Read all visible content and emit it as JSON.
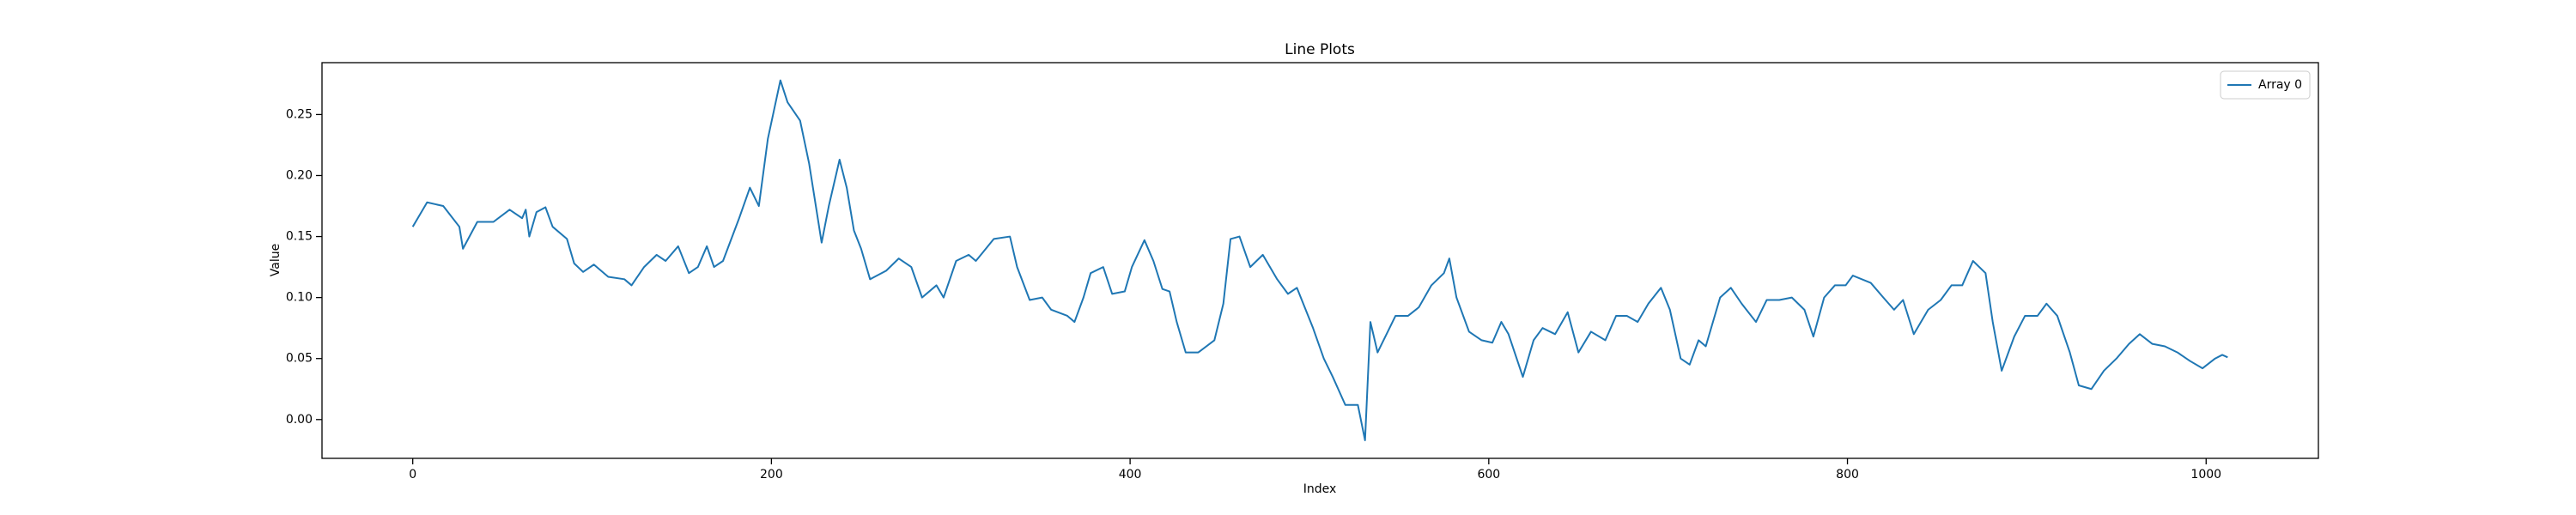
{
  "chart_data": {
    "type": "line",
    "title": "Line Plots",
    "x_label": "Index",
    "y_label": "Value",
    "x": [
      0,
      8,
      17,
      26,
      28,
      36,
      45,
      54,
      61,
      63,
      65,
      69,
      74,
      78,
      86,
      90,
      95,
      101,
      109,
      118,
      122,
      129,
      136,
      141,
      148,
      154,
      159,
      164,
      168,
      173,
      182,
      188,
      193,
      198,
      205,
      209,
      216,
      221,
      228,
      232,
      238,
      242,
      246,
      250,
      255,
      264,
      271,
      278,
      284,
      292,
      296,
      303,
      310,
      314,
      324,
      333,
      337,
      344,
      351,
      356,
      365,
      369,
      374,
      378,
      385,
      390,
      397,
      401,
      408,
      413,
      418,
      422,
      426,
      431,
      438,
      447,
      452,
      456,
      461,
      467,
      474,
      482,
      488,
      493,
      502,
      508,
      513,
      520,
      527,
      531,
      534,
      538,
      548,
      555,
      561,
      568,
      575,
      578,
      582,
      589,
      596,
      602,
      607,
      611,
      619,
      625,
      630,
      637,
      644,
      650,
      657,
      665,
      671,
      677,
      683,
      689,
      696,
      701,
      707,
      712,
      717,
      721,
      729,
      735,
      741,
      749,
      755,
      762,
      769,
      776,
      781,
      787,
      793,
      799,
      803,
      813,
      820,
      826,
      831,
      837,
      845,
      852,
      858,
      864,
      870,
      877,
      881,
      886,
      893,
      899,
      906,
      911,
      917,
      924,
      929,
      936,
      943,
      950,
      957,
      963,
      970,
      977,
      984,
      991,
      998,
      1005,
      1009,
      1012
    ],
    "series": [
      {
        "name": "Array 0",
        "color": "#1f77b4",
        "values": [
          0.158,
          0.178,
          0.175,
          0.158,
          0.14,
          0.162,
          0.162,
          0.172,
          0.165,
          0.172,
          0.15,
          0.17,
          0.174,
          0.158,
          0.148,
          0.128,
          0.121,
          0.127,
          0.117,
          0.115,
          0.11,
          0.125,
          0.135,
          0.13,
          0.142,
          0.12,
          0.125,
          0.142,
          0.125,
          0.13,
          0.165,
          0.19,
          0.175,
          0.23,
          0.278,
          0.26,
          0.245,
          0.21,
          0.145,
          0.175,
          0.213,
          0.19,
          0.155,
          0.14,
          0.115,
          0.122,
          0.132,
          0.125,
          0.1,
          0.11,
          0.1,
          0.13,
          0.135,
          0.13,
          0.148,
          0.15,
          0.125,
          0.098,
          0.1,
          0.09,
          0.085,
          0.08,
          0.1,
          0.12,
          0.125,
          0.103,
          0.105,
          0.125,
          0.147,
          0.13,
          0.107,
          0.105,
          0.08,
          0.055,
          0.055,
          0.065,
          0.095,
          0.148,
          0.15,
          0.125,
          0.135,
          0.115,
          0.103,
          0.108,
          0.075,
          0.05,
          0.035,
          0.012,
          0.012,
          -0.017,
          0.08,
          0.055,
          0.085,
          0.085,
          0.092,
          0.11,
          0.12,
          0.132,
          0.1,
          0.072,
          0.065,
          0.063,
          0.08,
          0.07,
          0.035,
          0.065,
          0.075,
          0.07,
          0.088,
          0.055,
          0.072,
          0.065,
          0.085,
          0.085,
          0.08,
          0.095,
          0.108,
          0.09,
          0.05,
          0.045,
          0.065,
          0.06,
          0.1,
          0.108,
          0.095,
          0.08,
          0.098,
          0.098,
          0.1,
          0.09,
          0.068,
          0.1,
          0.11,
          0.11,
          0.118,
          0.112,
          0.1,
          0.09,
          0.098,
          0.07,
          0.09,
          0.098,
          0.11,
          0.11,
          0.13,
          0.12,
          0.08,
          0.04,
          0.068,
          0.085,
          0.085,
          0.095,
          0.085,
          0.055,
          0.028,
          0.025,
          0.04,
          0.05,
          0.062,
          0.07,
          0.062,
          0.06,
          0.055,
          0.048,
          0.042,
          0.05,
          0.053,
          0.051
        ]
      }
    ],
    "xlim": [
      -50.6,
      1062.6
    ],
    "xticks": [
      0,
      200,
      400,
      600,
      800,
      1000
    ],
    "ylim": [
      -0.0318,
      0.2925
    ],
    "yticks": [
      {
        "value": 0,
        "label": "0.00"
      },
      {
        "value": 0.05,
        "label": "0.05"
      },
      {
        "value": 0.1,
        "label": "0.10"
      },
      {
        "value": 0.15,
        "label": "0.15"
      },
      {
        "value": 0.2,
        "label": "0.20"
      },
      {
        "value": 0.25,
        "label": "0.25"
      }
    ],
    "legend": "upper right",
    "grid": false
  }
}
